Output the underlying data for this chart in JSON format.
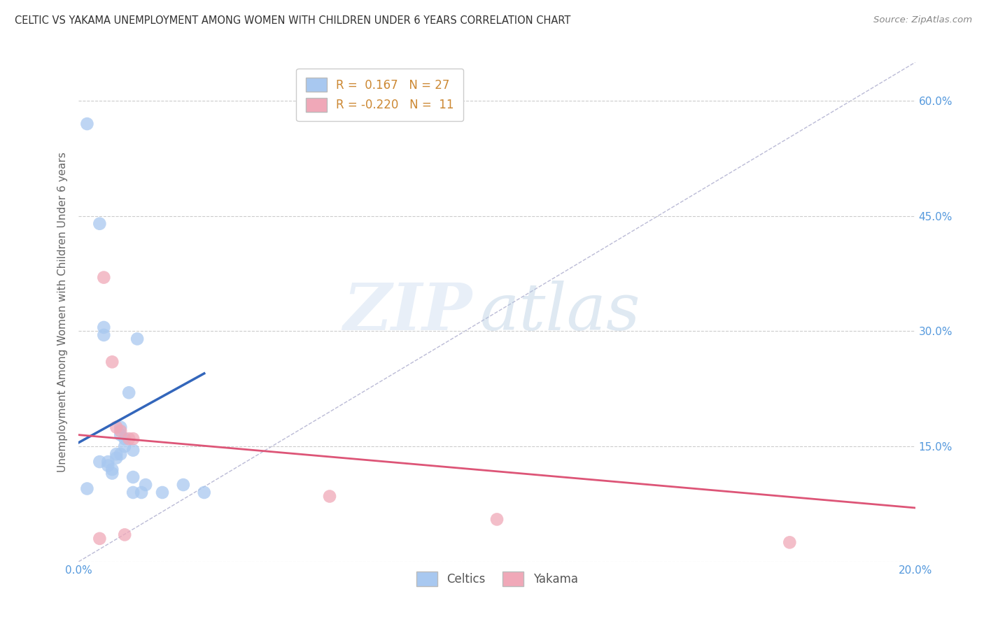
{
  "title": "CELTIC VS YAKAMA UNEMPLOYMENT AMONG WOMEN WITH CHILDREN UNDER 6 YEARS CORRELATION CHART",
  "source": "Source: ZipAtlas.com",
  "ylabel": "Unemployment Among Women with Children Under 6 years",
  "xlabel": "",
  "x_min": 0.0,
  "x_max": 0.2,
  "y_min": 0.0,
  "y_max": 0.65,
  "y_ticks": [
    0.0,
    0.15,
    0.3,
    0.45,
    0.6
  ],
  "x_ticks": [
    0.0,
    0.04,
    0.08,
    0.12,
    0.16,
    0.2
  ],
  "celtics_R": 0.167,
  "celtics_N": 27,
  "yakama_R": -0.22,
  "yakama_N": 11,
  "celtics_color": "#a8c8f0",
  "yakama_color": "#f0a8b8",
  "celtics_trend_color": "#3366bb",
  "yakama_trend_color": "#dd5577",
  "diag_color": "#aaaacc",
  "watermark_zip": "ZIP",
  "watermark_atlas": "atlas",
  "celtics_x": [
    0.002,
    0.005,
    0.006,
    0.007,
    0.007,
    0.008,
    0.008,
    0.009,
    0.009,
    0.01,
    0.01,
    0.01,
    0.011,
    0.011,
    0.012,
    0.013,
    0.013,
    0.013,
    0.014,
    0.015,
    0.016,
    0.02,
    0.025,
    0.03,
    0.005,
    0.002,
    0.006
  ],
  "celtics_y": [
    0.57,
    0.44,
    0.295,
    0.13,
    0.125,
    0.12,
    0.115,
    0.14,
    0.135,
    0.175,
    0.165,
    0.14,
    0.15,
    0.16,
    0.22,
    0.145,
    0.11,
    0.09,
    0.29,
    0.09,
    0.1,
    0.09,
    0.1,
    0.09,
    0.13,
    0.095,
    0.305
  ],
  "yakama_x": [
    0.005,
    0.006,
    0.009,
    0.01,
    0.011,
    0.012,
    0.013,
    0.06,
    0.1,
    0.17,
    0.008
  ],
  "yakama_y": [
    0.03,
    0.37,
    0.175,
    0.17,
    0.035,
    0.16,
    0.16,
    0.085,
    0.055,
    0.025,
    0.26
  ],
  "celtics_trend_x": [
    0.0,
    0.03
  ],
  "celtics_trend_y": [
    0.155,
    0.245
  ],
  "yakama_trend_x": [
    0.0,
    0.2
  ],
  "yakama_trend_y": [
    0.165,
    0.07
  ]
}
